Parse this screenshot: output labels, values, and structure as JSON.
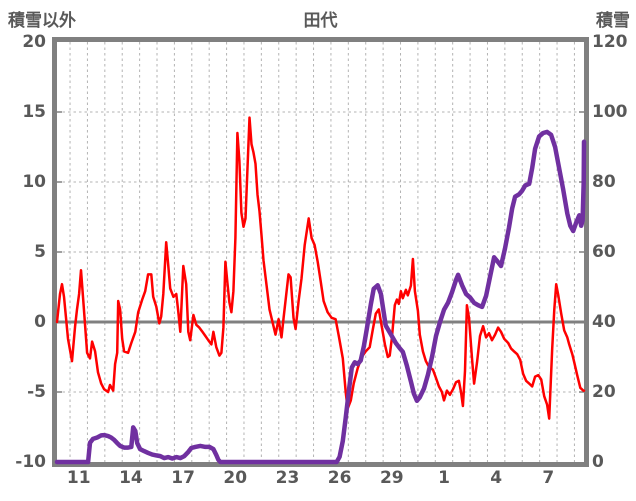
{
  "header": {
    "left_axis_title": "積雪以外",
    "chart_title": "田代",
    "right_axis_title": "積雪"
  },
  "chart_data": {
    "type": "line",
    "title": "田代",
    "grid": true,
    "legend": "none",
    "left_axis": {
      "label": "積雪以外",
      "min": -10,
      "max": 20,
      "ticks": [
        20,
        15,
        10,
        5,
        0,
        -5,
        -10
      ]
    },
    "right_axis": {
      "label": "積雪",
      "min": 0,
      "max": 120,
      "ticks": [
        120,
        100,
        80,
        60,
        40,
        20,
        0
      ]
    },
    "x_axis": {
      "tick_labels": [
        "11",
        "14",
        "17",
        "20",
        "23",
        "26",
        "29",
        "1",
        "4",
        "7"
      ],
      "days_span": 30.3,
      "first_gridline_day": 0.75,
      "gridline_step": 1,
      "first_label_day": 1.25,
      "label_step": 3
    },
    "colors": {
      "temperature": "#ff0000",
      "snow": "#7030a0",
      "axis": "#808080",
      "grid": "#b3b3b3",
      "text": "#595959"
    },
    "series": [
      {
        "name": "積雪以外",
        "data_name": "temperature-line",
        "axis": "left",
        "color_key": "temperature",
        "width": 2.5,
        "points": [
          [
            0,
            0
          ],
          [
            0.17,
            2
          ],
          [
            0.29,
            2.7
          ],
          [
            0.4,
            1.8
          ],
          [
            0.52,
            0.3
          ],
          [
            0.63,
            -1.2
          ],
          [
            0.86,
            -2.8
          ],
          [
            1.04,
            -0.3
          ],
          [
            1.15,
            0.9
          ],
          [
            1.27,
            2
          ],
          [
            1.38,
            3.7
          ],
          [
            1.5,
            1.7
          ],
          [
            1.73,
            -2.2
          ],
          [
            1.9,
            -2.6
          ],
          [
            2.02,
            -1.4
          ],
          [
            2.19,
            -2.1
          ],
          [
            2.36,
            -3.6
          ],
          [
            2.54,
            -4.4
          ],
          [
            2.71,
            -4.8
          ],
          [
            2.94,
            -5
          ],
          [
            3.05,
            -4.5
          ],
          [
            3.23,
            -4.9
          ],
          [
            3.34,
            -3
          ],
          [
            3.46,
            -2.2
          ],
          [
            3.52,
            1.5
          ],
          [
            3.63,
            0.9
          ],
          [
            3.75,
            -1.2
          ],
          [
            3.86,
            -2.1
          ],
          [
            4.09,
            -2.2
          ],
          [
            4.27,
            -1.5
          ],
          [
            4.5,
            -0.7
          ],
          [
            4.67,
            0.7
          ],
          [
            4.9,
            1.6
          ],
          [
            5.07,
            2.2
          ],
          [
            5.24,
            3.4
          ],
          [
            5.42,
            3.4
          ],
          [
            5.53,
            1.8
          ],
          [
            5.71,
            1.1
          ],
          [
            5.88,
            -0.1
          ],
          [
            5.99,
            0.4
          ],
          [
            6.11,
            2
          ],
          [
            6.28,
            5.7
          ],
          [
            6.4,
            4
          ],
          [
            6.51,
            2.4
          ],
          [
            6.69,
            1.8
          ],
          [
            6.86,
            2
          ],
          [
            6.97,
            0.8
          ],
          [
            7.09,
            -0.7
          ],
          [
            7.26,
            4
          ],
          [
            7.43,
            2.7
          ],
          [
            7.55,
            -0.7
          ],
          [
            7.66,
            -1.3
          ],
          [
            7.84,
            0.5
          ],
          [
            8.01,
            -0.2
          ],
          [
            8.18,
            -0.4
          ],
          [
            8.36,
            -0.7
          ],
          [
            8.53,
            -1
          ],
          [
            8.7,
            -1.3
          ],
          [
            8.88,
            -1.6
          ],
          [
            8.99,
            -0.7
          ],
          [
            9.16,
            -1.8
          ],
          [
            9.34,
            -2.4
          ],
          [
            9.45,
            -2.2
          ],
          [
            9.57,
            -0.4
          ],
          [
            9.68,
            4.3
          ],
          [
            9.8,
            2.8
          ],
          [
            9.91,
            1.4
          ],
          [
            10.03,
            0.7
          ],
          [
            10.14,
            2.2
          ],
          [
            10.26,
            6
          ],
          [
            10.37,
            13.5
          ],
          [
            10.49,
            11.5
          ],
          [
            10.6,
            7.8
          ],
          [
            10.72,
            6.8
          ],
          [
            10.84,
            7.4
          ],
          [
            10.95,
            11
          ],
          [
            11.07,
            14.6
          ],
          [
            11.18,
            12.7
          ],
          [
            11.3,
            12.1
          ],
          [
            11.41,
            11.3
          ],
          [
            11.53,
            9.1
          ],
          [
            11.64,
            7.9
          ],
          [
            11.76,
            6.2
          ],
          [
            11.87,
            4.4
          ],
          [
            12.05,
            2.6
          ],
          [
            12.22,
            0.9
          ],
          [
            12.39,
            0
          ],
          [
            12.56,
            -0.9
          ],
          [
            12.74,
            0.2
          ],
          [
            12.91,
            -1.1
          ],
          [
            13.03,
            0.3
          ],
          [
            13.14,
            1.5
          ],
          [
            13.31,
            3.4
          ],
          [
            13.43,
            3.2
          ],
          [
            13.6,
            0.3
          ],
          [
            13.72,
            -0.5
          ],
          [
            13.89,
            1.5
          ],
          [
            14.06,
            3.1
          ],
          [
            14.24,
            5.5
          ],
          [
            14.47,
            7.4
          ],
          [
            14.64,
            6
          ],
          [
            14.81,
            5.5
          ],
          [
            14.99,
            4.3
          ],
          [
            15.16,
            2.9
          ],
          [
            15.33,
            1.5
          ],
          [
            15.56,
            0.7
          ],
          [
            15.79,
            0.3
          ],
          [
            16.02,
            0.2
          ],
          [
            16.2,
            -1
          ],
          [
            16.43,
            -2.6
          ],
          [
            16.6,
            -5
          ],
          [
            16.71,
            -6.2
          ],
          [
            16.89,
            -5.6
          ],
          [
            17.06,
            -4.4
          ],
          [
            17.29,
            -3.3
          ],
          [
            17.52,
            -2.5
          ],
          [
            17.75,
            -2.1
          ],
          [
            17.98,
            -1.8
          ],
          [
            18.16,
            -0.5
          ],
          [
            18.33,
            0.6
          ],
          [
            18.5,
            0.9
          ],
          [
            18.67,
            -0.3
          ],
          [
            18.85,
            -1.6
          ],
          [
            19.02,
            -2.5
          ],
          [
            19.13,
            -2.4
          ],
          [
            19.25,
            -1.2
          ],
          [
            19.42,
            1.2
          ],
          [
            19.54,
            1.6
          ],
          [
            19.65,
            1.3
          ],
          [
            19.77,
            2.2
          ],
          [
            19.88,
            1.7
          ],
          [
            20.06,
            2.3
          ],
          [
            20.17,
            1.9
          ],
          [
            20.35,
            2.6
          ],
          [
            20.46,
            4.5
          ],
          [
            20.58,
            2.2
          ],
          [
            20.75,
            0.8
          ],
          [
            20.86,
            -0.9
          ],
          [
            21.04,
            -2.1
          ],
          [
            21.21,
            -2.8
          ],
          [
            21.38,
            -3.2
          ],
          [
            21.61,
            -3.4
          ],
          [
            21.79,
            -4
          ],
          [
            21.96,
            -4.6
          ],
          [
            22.13,
            -5
          ],
          [
            22.25,
            -5.6
          ],
          [
            22.42,
            -4.9
          ],
          [
            22.59,
            -5.2
          ],
          [
            22.77,
            -4.8
          ],
          [
            22.94,
            -4.3
          ],
          [
            23.11,
            -4.2
          ],
          [
            23.23,
            -5
          ],
          [
            23.34,
            -6
          ],
          [
            23.46,
            -3.5
          ],
          [
            23.57,
            1.2
          ],
          [
            23.69,
            0.3
          ],
          [
            23.86,
            -2.6
          ],
          [
            23.98,
            -4.4
          ],
          [
            24.15,
            -2.9
          ],
          [
            24.32,
            -1
          ],
          [
            24.5,
            -0.3
          ],
          [
            24.67,
            -1.1
          ],
          [
            24.84,
            -0.8
          ],
          [
            25.01,
            -1.3
          ],
          [
            25.19,
            -0.9
          ],
          [
            25.36,
            -0.4
          ],
          [
            25.53,
            -0.7
          ],
          [
            25.71,
            -1.2
          ],
          [
            25.94,
            -1.5
          ],
          [
            26.11,
            -1.9
          ],
          [
            26.28,
            -2.1
          ],
          [
            26.46,
            -2.3
          ],
          [
            26.63,
            -2.7
          ],
          [
            26.8,
            -3.7
          ],
          [
            26.97,
            -4.2
          ],
          [
            27.15,
            -4.4
          ],
          [
            27.32,
            -4.6
          ],
          [
            27.49,
            -3.9
          ],
          [
            27.67,
            -3.8
          ],
          [
            27.84,
            -4.1
          ],
          [
            28.01,
            -5.3
          ],
          [
            28.18,
            -5.9
          ],
          [
            28.3,
            -6.9
          ],
          [
            28.47,
            -1.9
          ],
          [
            28.59,
            0.9
          ],
          [
            28.7,
            2.7
          ],
          [
            28.82,
            1.9
          ],
          [
            28.99,
            0.6
          ],
          [
            29.16,
            -0.6
          ],
          [
            29.34,
            -1.1
          ],
          [
            29.45,
            -1.6
          ],
          [
            29.63,
            -2.3
          ],
          [
            29.74,
            -2.9
          ],
          [
            29.91,
            -3.8
          ],
          [
            30.09,
            -4.7
          ],
          [
            30.26,
            -4.9
          ],
          [
            30.3,
            -4.9
          ]
        ]
      },
      {
        "name": "積雪",
        "data_name": "snow-line",
        "axis": "right",
        "color_key": "snow",
        "width": 4.5,
        "points": [
          [
            0,
            0
          ],
          [
            1.79,
            0
          ],
          [
            1.9,
            5.5
          ],
          [
            2.07,
            6.6
          ],
          [
            2.31,
            7
          ],
          [
            2.54,
            7.6
          ],
          [
            2.71,
            7.7
          ],
          [
            2.94,
            7.4
          ],
          [
            3.11,
            7
          ],
          [
            3.29,
            6.3
          ],
          [
            3.46,
            5.4
          ],
          [
            3.63,
            4.6
          ],
          [
            3.86,
            4.1
          ],
          [
            4.09,
            4.1
          ],
          [
            4.27,
            4.3
          ],
          [
            4.38,
            9.9
          ],
          [
            4.5,
            8.9
          ],
          [
            4.61,
            5.4
          ],
          [
            4.78,
            3.7
          ],
          [
            5.01,
            3.1
          ],
          [
            5.24,
            2.6
          ],
          [
            5.48,
            2.1
          ],
          [
            5.71,
            1.9
          ],
          [
            5.94,
            1.7
          ],
          [
            6.17,
            1.1
          ],
          [
            6.4,
            1.4
          ],
          [
            6.63,
            1
          ],
          [
            6.86,
            1.4
          ],
          [
            7.09,
            1.1
          ],
          [
            7.32,
            1.7
          ],
          [
            7.55,
            2.9
          ],
          [
            7.72,
            4
          ],
          [
            7.95,
            4.3
          ],
          [
            8.24,
            4.6
          ],
          [
            8.53,
            4.3
          ],
          [
            8.76,
            4.3
          ],
          [
            8.99,
            3.7
          ],
          [
            9.16,
            2
          ],
          [
            9.28,
            0.6
          ],
          [
            9.39,
            0
          ],
          [
            16.08,
            0
          ],
          [
            16.25,
            1.5
          ],
          [
            16.43,
            6
          ],
          [
            16.6,
            12.6
          ],
          [
            16.77,
            20
          ],
          [
            16.95,
            27
          ],
          [
            17.12,
            28.5
          ],
          [
            17.29,
            28
          ],
          [
            17.46,
            29
          ],
          [
            17.64,
            33
          ],
          [
            17.81,
            38
          ],
          [
            18.04,
            45
          ],
          [
            18.21,
            49.5
          ],
          [
            18.44,
            50.5
          ],
          [
            18.62,
            48
          ],
          [
            18.9,
            39
          ],
          [
            19.19,
            36.5
          ],
          [
            19.48,
            34
          ],
          [
            19.71,
            32.5
          ],
          [
            19.88,
            31.5
          ],
          [
            20.12,
            27.5
          ],
          [
            20.35,
            23
          ],
          [
            20.52,
            19.5
          ],
          [
            20.69,
            17.5
          ],
          [
            20.86,
            18.5
          ],
          [
            21.1,
            21
          ],
          [
            21.33,
            25
          ],
          [
            21.56,
            30
          ],
          [
            21.79,
            36
          ],
          [
            22.02,
            40
          ],
          [
            22.25,
            43.5
          ],
          [
            22.48,
            45.5
          ],
          [
            22.71,
            48.5
          ],
          [
            22.94,
            52
          ],
          [
            23.06,
            53.5
          ],
          [
            23.29,
            50.5
          ],
          [
            23.52,
            48
          ],
          [
            23.75,
            47
          ],
          [
            23.98,
            45.5
          ],
          [
            24.21,
            44.8
          ],
          [
            24.44,
            44.3
          ],
          [
            24.67,
            47.5
          ],
          [
            24.9,
            53
          ],
          [
            25.13,
            58.5
          ],
          [
            25.3,
            57.5
          ],
          [
            25.53,
            56
          ],
          [
            25.76,
            61
          ],
          [
            25.99,
            67
          ],
          [
            26.17,
            72.5
          ],
          [
            26.34,
            75.8
          ],
          [
            26.57,
            76.5
          ],
          [
            26.74,
            77.5
          ],
          [
            26.92,
            79
          ],
          [
            27.15,
            79.5
          ],
          [
            27.32,
            84
          ],
          [
            27.49,
            89.5
          ],
          [
            27.72,
            93
          ],
          [
            27.95,
            94
          ],
          [
            28.18,
            94.3
          ],
          [
            28.41,
            93.5
          ],
          [
            28.64,
            90
          ],
          [
            28.87,
            84
          ],
          [
            29.1,
            78
          ],
          [
            29.34,
            71
          ],
          [
            29.51,
            67.5
          ],
          [
            29.68,
            66
          ],
          [
            29.86,
            68.5
          ],
          [
            30.03,
            70.5
          ],
          [
            30.14,
            67.5
          ],
          [
            30.22,
            69
          ],
          [
            30.28,
            80
          ],
          [
            30.3,
            91.5
          ]
        ]
      }
    ]
  }
}
